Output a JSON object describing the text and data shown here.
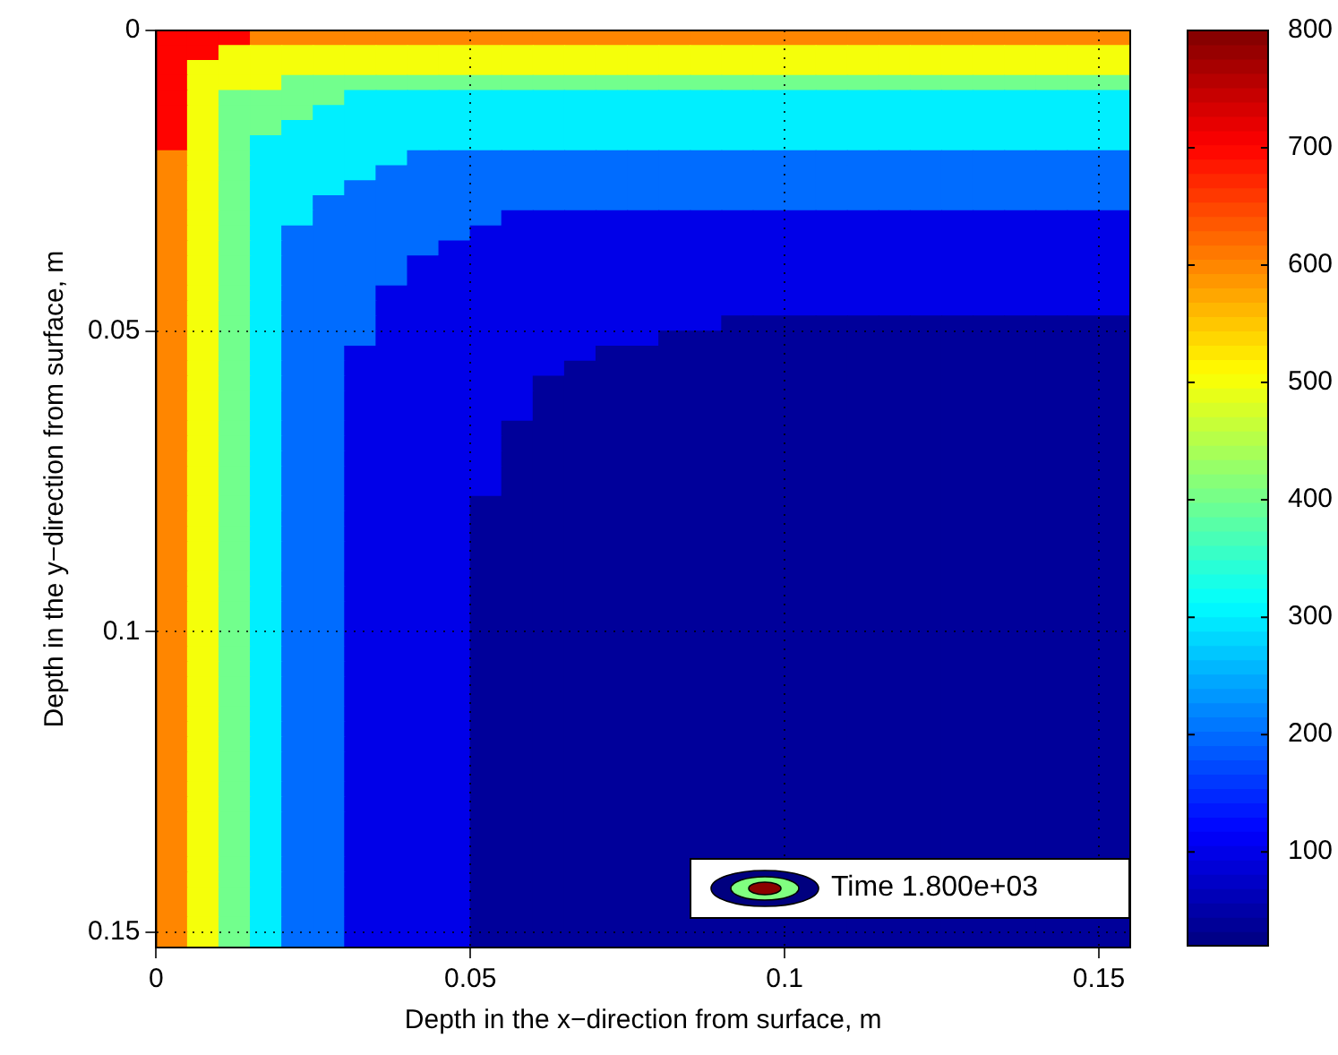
{
  "chart_data": {
    "type": "heatmap",
    "xlabel": "Depth in the x−direction from surface, m",
    "ylabel": "Depth in the y−direction from surface, m",
    "x": [
      0.0025,
      0.0075,
      0.0125,
      0.0175,
      0.0225,
      0.0275,
      0.0325,
      0.0375,
      0.0425,
      0.0475,
      0.0525,
      0.0575,
      0.0625,
      0.0675,
      0.0725,
      0.0775,
      0.0825,
      0.0875,
      0.0925,
      0.0975,
      0.1025,
      0.1075,
      0.1125,
      0.1175,
      0.1225,
      0.1275,
      0.1325,
      0.1375,
      0.1425,
      0.1475,
      0.1525
    ],
    "y": [
      0.00125,
      0.00375,
      0.00625,
      0.00875,
      0.01125,
      0.01375,
      0.01625,
      0.01875,
      0.02125,
      0.02375,
      0.02625,
      0.02875,
      0.03125,
      0.03375,
      0.03625,
      0.03875,
      0.04125,
      0.04375,
      0.04625,
      0.04875,
      0.05125,
      0.05375,
      0.05625,
      0.05875,
      0.06125,
      0.06375,
      0.06625,
      0.06875,
      0.07125,
      0.07375,
      0.07625,
      0.07875,
      0.08125,
      0.08375,
      0.08625,
      0.08875,
      0.09125,
      0.09375,
      0.09625,
      0.09875,
      0.10125,
      0.10375,
      0.10625,
      0.10875,
      0.11125,
      0.11375,
      0.11625,
      0.11875,
      0.12125,
      0.12375,
      0.12625,
      0.12875,
      0.13125,
      0.13375,
      0.13625,
      0.13875,
      0.14125,
      0.14375,
      0.14625,
      0.14875,
      0.15125
    ],
    "xlim": [
      0,
      0.155
    ],
    "xticks": [
      0,
      0.05,
      0.1,
      0.15
    ],
    "ylim": [
      0.1525,
      0
    ],
    "yticks": [
      0,
      0.05,
      0.1,
      0.15
    ],
    "clim": [
      20,
      800
    ],
    "cticks": [
      100,
      200,
      300,
      400,
      500,
      600,
      700,
      800
    ],
    "grid": true,
    "annotations": [
      "Time 1.800e+03"
    ],
    "cells": [
      [
        700,
        700,
        700,
        600,
        600,
        600,
        600,
        600,
        600,
        600,
        600,
        600,
        600,
        600,
        600,
        600,
        600,
        600,
        600,
        600,
        600,
        600,
        600,
        600,
        600,
        600,
        600,
        600,
        600,
        600,
        600
      ],
      [
        700,
        700,
        500,
        500,
        500,
        500,
        500,
        500,
        500,
        500,
        500,
        500,
        500,
        500,
        500,
        500,
        500,
        500,
        500,
        500,
        500,
        500,
        500,
        500,
        500,
        500,
        500,
        500,
        500,
        500,
        500
      ],
      [
        700,
        500,
        500,
        500,
        500,
        500,
        500,
        500,
        500,
        500,
        500,
        500,
        500,
        500,
        500,
        500,
        500,
        500,
        500,
        500,
        500,
        500,
        500,
        500,
        500,
        500,
        500,
        500,
        500,
        500,
        500
      ],
      [
        700,
        500,
        500,
        500,
        400,
        400,
        400,
        400,
        400,
        400,
        400,
        400,
        400,
        400,
        400,
        400,
        400,
        400,
        400,
        400,
        400,
        400,
        400,
        400,
        400,
        400,
        400,
        400,
        400,
        400,
        400
      ],
      [
        700,
        500,
        400,
        400,
        400,
        400,
        300,
        300,
        300,
        300,
        300,
        300,
        300,
        300,
        300,
        300,
        300,
        300,
        300,
        300,
        300,
        300,
        300,
        300,
        300,
        300,
        300,
        300,
        300,
        300,
        300
      ],
      [
        700,
        500,
        400,
        400,
        400,
        300,
        300,
        300,
        300,
        300,
        300,
        300,
        300,
        300,
        300,
        300,
        300,
        300,
        300,
        300,
        300,
        300,
        300,
        300,
        300,
        300,
        300,
        300,
        300,
        300,
        300
      ],
      [
        700,
        500,
        400,
        400,
        300,
        300,
        300,
        300,
        300,
        300,
        300,
        300,
        300,
        300,
        300,
        300,
        300,
        300,
        300,
        300,
        300,
        300,
        300,
        300,
        300,
        300,
        300,
        300,
        300,
        300,
        300
      ],
      [
        700,
        500,
        400,
        300,
        300,
        300,
        300,
        300,
        300,
        300,
        300,
        300,
        300,
        300,
        300,
        300,
        300,
        300,
        300,
        300,
        300,
        300,
        300,
        300,
        300,
        300,
        300,
        300,
        300,
        300,
        300
      ],
      [
        600,
        500,
        400,
        300,
        300,
        300,
        300,
        300,
        200,
        200,
        200,
        200,
        200,
        200,
        200,
        200,
        200,
        200,
        200,
        200,
        200,
        200,
        200,
        200,
        200,
        200,
        200,
        200,
        200,
        200,
        200
      ],
      [
        600,
        500,
        400,
        300,
        300,
        300,
        300,
        200,
        200,
        200,
        200,
        200,
        200,
        200,
        200,
        200,
        200,
        200,
        200,
        200,
        200,
        200,
        200,
        200,
        200,
        200,
        200,
        200,
        200,
        200,
        200
      ],
      [
        600,
        500,
        400,
        300,
        300,
        300,
        200,
        200,
        200,
        200,
        200,
        200,
        200,
        200,
        200,
        200,
        200,
        200,
        200,
        200,
        200,
        200,
        200,
        200,
        200,
        200,
        200,
        200,
        200,
        200,
        200
      ],
      [
        600,
        500,
        400,
        300,
        300,
        200,
        200,
        200,
        200,
        200,
        200,
        200,
        200,
        200,
        200,
        200,
        200,
        200,
        200,
        200,
        200,
        200,
        200,
        200,
        200,
        200,
        200,
        200,
        200,
        200,
        200
      ],
      [
        600,
        500,
        400,
        300,
        300,
        200,
        200,
        200,
        200,
        200,
        200,
        100,
        100,
        100,
        100,
        100,
        100,
        100,
        100,
        100,
        100,
        100,
        100,
        100,
        100,
        100,
        100,
        100,
        100,
        100,
        100
      ],
      [
        600,
        500,
        400,
        300,
        200,
        200,
        200,
        200,
        200,
        200,
        100,
        100,
        100,
        100,
        100,
        100,
        100,
        100,
        100,
        100,
        100,
        100,
        100,
        100,
        100,
        100,
        100,
        100,
        100,
        100,
        100
      ],
      [
        600,
        500,
        400,
        300,
        200,
        200,
        200,
        200,
        200,
        100,
        100,
        100,
        100,
        100,
        100,
        100,
        100,
        100,
        100,
        100,
        100,
        100,
        100,
        100,
        100,
        100,
        100,
        100,
        100,
        100,
        100
      ],
      [
        600,
        500,
        400,
        300,
        200,
        200,
        200,
        200,
        100,
        100,
        100,
        100,
        100,
        100,
        100,
        100,
        100,
        100,
        100,
        100,
        100,
        100,
        100,
        100,
        100,
        100,
        100,
        100,
        100,
        100,
        100
      ],
      [
        600,
        500,
        400,
        300,
        200,
        200,
        200,
        200,
        100,
        100,
        100,
        100,
        100,
        100,
        100,
        100,
        100,
        100,
        100,
        100,
        100,
        100,
        100,
        100,
        100,
        100,
        100,
        100,
        100,
        100,
        100
      ],
      [
        600,
        500,
        400,
        300,
        200,
        200,
        200,
        100,
        100,
        100,
        100,
        100,
        100,
        100,
        100,
        100,
        100,
        100,
        100,
        100,
        100,
        100,
        100,
        100,
        100,
        100,
        100,
        100,
        100,
        100,
        100
      ],
      [
        600,
        500,
        400,
        300,
        200,
        200,
        200,
        100,
        100,
        100,
        100,
        100,
        100,
        100,
        100,
        100,
        100,
        100,
        100,
        100,
        100,
        100,
        100,
        100,
        100,
        100,
        100,
        100,
        100,
        100,
        100
      ],
      [
        600,
        500,
        400,
        300,
        200,
        200,
        200,
        100,
        100,
        100,
        100,
        100,
        100,
        100,
        100,
        100,
        100,
        100,
        40,
        40,
        40,
        40,
        40,
        40,
        40,
        40,
        40,
        40,
        40,
        40,
        40
      ],
      [
        600,
        500,
        400,
        300,
        200,
        200,
        200,
        100,
        100,
        100,
        100,
        100,
        100,
        100,
        100,
        100,
        40,
        40,
        40,
        40,
        40,
        40,
        40,
        40,
        40,
        40,
        40,
        40,
        40,
        40,
        40
      ],
      [
        600,
        500,
        400,
        300,
        200,
        200,
        100,
        100,
        100,
        100,
        100,
        100,
        100,
        100,
        40,
        40,
        40,
        40,
        40,
        40,
        40,
        40,
        40,
        40,
        40,
        40,
        40,
        40,
        40,
        40,
        40
      ],
      [
        600,
        500,
        400,
        300,
        200,
        200,
        100,
        100,
        100,
        100,
        100,
        100,
        100,
        40,
        40,
        40,
        40,
        40,
        40,
        40,
        40,
        40,
        40,
        40,
        40,
        40,
        40,
        40,
        40,
        40,
        40
      ],
      [
        600,
        500,
        400,
        300,
        200,
        200,
        100,
        100,
        100,
        100,
        100,
        100,
        40,
        40,
        40,
        40,
        40,
        40,
        40,
        40,
        40,
        40,
        40,
        40,
        40,
        40,
        40,
        40,
        40,
        40,
        40
      ],
      [
        600,
        500,
        400,
        300,
        200,
        200,
        100,
        100,
        100,
        100,
        100,
        100,
        40,
        40,
        40,
        40,
        40,
        40,
        40,
        40,
        40,
        40,
        40,
        40,
        40,
        40,
        40,
        40,
        40,
        40,
        40
      ],
      [
        600,
        500,
        400,
        300,
        200,
        200,
        100,
        100,
        100,
        100,
        100,
        100,
        40,
        40,
        40,
        40,
        40,
        40,
        40,
        40,
        40,
        40,
        40,
        40,
        40,
        40,
        40,
        40,
        40,
        40,
        40
      ],
      [
        600,
        500,
        400,
        300,
        200,
        200,
        100,
        100,
        100,
        100,
        100,
        40,
        40,
        40,
        40,
        40,
        40,
        40,
        40,
        40,
        40,
        40,
        40,
        40,
        40,
        40,
        40,
        40,
        40,
        40,
        40
      ],
      [
        600,
        500,
        400,
        300,
        200,
        200,
        100,
        100,
        100,
        100,
        100,
        40,
        40,
        40,
        40,
        40,
        40,
        40,
        40,
        40,
        40,
        40,
        40,
        40,
        40,
        40,
        40,
        40,
        40,
        40,
        40
      ],
      [
        600,
        500,
        400,
        300,
        200,
        200,
        100,
        100,
        100,
        100,
        100,
        40,
        40,
        40,
        40,
        40,
        40,
        40,
        40,
        40,
        40,
        40,
        40,
        40,
        40,
        40,
        40,
        40,
        40,
        40,
        40
      ],
      [
        600,
        500,
        400,
        300,
        200,
        200,
        100,
        100,
        100,
        100,
        100,
        40,
        40,
        40,
        40,
        40,
        40,
        40,
        40,
        40,
        40,
        40,
        40,
        40,
        40,
        40,
        40,
        40,
        40,
        40,
        40
      ],
      [
        600,
        500,
        400,
        300,
        200,
        200,
        100,
        100,
        100,
        100,
        100,
        40,
        40,
        40,
        40,
        40,
        40,
        40,
        40,
        40,
        40,
        40,
        40,
        40,
        40,
        40,
        40,
        40,
        40,
        40,
        40
      ],
      [
        600,
        500,
        400,
        300,
        200,
        200,
        100,
        100,
        100,
        100,
        40,
        40,
        40,
        40,
        40,
        40,
        40,
        40,
        40,
        40,
        40,
        40,
        40,
        40,
        40,
        40,
        40,
        40,
        40,
        40,
        40
      ],
      [
        600,
        500,
        400,
        300,
        200,
        200,
        100,
        100,
        100,
        100,
        40,
        40,
        40,
        40,
        40,
        40,
        40,
        40,
        40,
        40,
        40,
        40,
        40,
        40,
        40,
        40,
        40,
        40,
        40,
        40,
        40
      ],
      [
        600,
        500,
        400,
        300,
        200,
        200,
        100,
        100,
        100,
        100,
        40,
        40,
        40,
        40,
        40,
        40,
        40,
        40,
        40,
        40,
        40,
        40,
        40,
        40,
        40,
        40,
        40,
        40,
        40,
        40,
        40
      ],
      [
        600,
        500,
        400,
        300,
        200,
        200,
        100,
        100,
        100,
        100,
        40,
        40,
        40,
        40,
        40,
        40,
        40,
        40,
        40,
        40,
        40,
        40,
        40,
        40,
        40,
        40,
        40,
        40,
        40,
        40,
        40
      ],
      [
        600,
        500,
        400,
        300,
        200,
        200,
        100,
        100,
        100,
        100,
        40,
        40,
        40,
        40,
        40,
        40,
        40,
        40,
        40,
        40,
        40,
        40,
        40,
        40,
        40,
        40,
        40,
        40,
        40,
        40,
        40
      ],
      [
        600,
        500,
        400,
        300,
        200,
        200,
        100,
        100,
        100,
        100,
        40,
        40,
        40,
        40,
        40,
        40,
        40,
        40,
        40,
        40,
        40,
        40,
        40,
        40,
        40,
        40,
        40,
        40,
        40,
        40,
        40
      ],
      [
        600,
        500,
        400,
        300,
        200,
        200,
        100,
        100,
        100,
        100,
        40,
        40,
        40,
        40,
        40,
        40,
        40,
        40,
        40,
        40,
        40,
        40,
        40,
        40,
        40,
        40,
        40,
        40,
        40,
        40,
        40
      ],
      [
        600,
        500,
        400,
        300,
        200,
        200,
        100,
        100,
        100,
        100,
        40,
        40,
        40,
        40,
        40,
        40,
        40,
        40,
        40,
        40,
        40,
        40,
        40,
        40,
        40,
        40,
        40,
        40,
        40,
        40,
        40
      ],
      [
        600,
        500,
        400,
        300,
        200,
        200,
        100,
        100,
        100,
        100,
        40,
        40,
        40,
        40,
        40,
        40,
        40,
        40,
        40,
        40,
        40,
        40,
        40,
        40,
        40,
        40,
        40,
        40,
        40,
        40,
        40
      ],
      [
        600,
        500,
        400,
        300,
        200,
        200,
        100,
        100,
        100,
        100,
        40,
        40,
        40,
        40,
        40,
        40,
        40,
        40,
        40,
        40,
        40,
        40,
        40,
        40,
        40,
        40,
        40,
        40,
        40,
        40,
        40
      ],
      [
        600,
        500,
        400,
        300,
        200,
        200,
        100,
        100,
        100,
        100,
        40,
        40,
        40,
        40,
        40,
        40,
        40,
        40,
        40,
        40,
        40,
        40,
        40,
        40,
        40,
        40,
        40,
        40,
        40,
        40,
        40
      ],
      [
        600,
        500,
        400,
        300,
        200,
        200,
        100,
        100,
        100,
        100,
        40,
        40,
        40,
        40,
        40,
        40,
        40,
        40,
        40,
        40,
        40,
        40,
        40,
        40,
        40,
        40,
        40,
        40,
        40,
        40,
        40
      ],
      [
        600,
        500,
        400,
        300,
        200,
        200,
        100,
        100,
        100,
        100,
        40,
        40,
        40,
        40,
        40,
        40,
        40,
        40,
        40,
        40,
        40,
        40,
        40,
        40,
        40,
        40,
        40,
        40,
        40,
        40,
        40
      ],
      [
        600,
        500,
        400,
        300,
        200,
        200,
        100,
        100,
        100,
        100,
        40,
        40,
        40,
        40,
        40,
        40,
        40,
        40,
        40,
        40,
        40,
        40,
        40,
        40,
        40,
        40,
        40,
        40,
        40,
        40,
        40
      ],
      [
        600,
        500,
        400,
        300,
        200,
        200,
        100,
        100,
        100,
        100,
        40,
        40,
        40,
        40,
        40,
        40,
        40,
        40,
        40,
        40,
        40,
        40,
        40,
        40,
        40,
        40,
        40,
        40,
        40,
        40,
        40
      ],
      [
        600,
        500,
        400,
        300,
        200,
        200,
        100,
        100,
        100,
        100,
        40,
        40,
        40,
        40,
        40,
        40,
        40,
        40,
        40,
        40,
        40,
        40,
        40,
        40,
        40,
        40,
        40,
        40,
        40,
        40,
        40
      ],
      [
        600,
        500,
        400,
        300,
        200,
        200,
        100,
        100,
        100,
        100,
        40,
        40,
        40,
        40,
        40,
        40,
        40,
        40,
        40,
        40,
        40,
        40,
        40,
        40,
        40,
        40,
        40,
        40,
        40,
        40,
        40
      ],
      [
        600,
        500,
        400,
        300,
        200,
        200,
        100,
        100,
        100,
        100,
        40,
        40,
        40,
        40,
        40,
        40,
        40,
        40,
        40,
        40,
        40,
        40,
        40,
        40,
        40,
        40,
        40,
        40,
        40,
        40,
        40
      ],
      [
        600,
        500,
        400,
        300,
        200,
        200,
        100,
        100,
        100,
        100,
        40,
        40,
        40,
        40,
        40,
        40,
        40,
        40,
        40,
        40,
        40,
        40,
        40,
        40,
        40,
        40,
        40,
        40,
        40,
        40,
        40
      ],
      [
        600,
        500,
        400,
        300,
        200,
        200,
        100,
        100,
        100,
        100,
        40,
        40,
        40,
        40,
        40,
        40,
        40,
        40,
        40,
        40,
        40,
        40,
        40,
        40,
        40,
        40,
        40,
        40,
        40,
        40,
        40
      ],
      [
        600,
        500,
        400,
        300,
        200,
        200,
        100,
        100,
        100,
        100,
        40,
        40,
        40,
        40,
        40,
        40,
        40,
        40,
        40,
        40,
        40,
        40,
        40,
        40,
        40,
        40,
        40,
        40,
        40,
        40,
        40
      ],
      [
        600,
        500,
        400,
        300,
        200,
        200,
        100,
        100,
        100,
        100,
        40,
        40,
        40,
        40,
        40,
        40,
        40,
        40,
        40,
        40,
        40,
        40,
        40,
        40,
        40,
        40,
        40,
        40,
        40,
        40,
        40
      ],
      [
        600,
        500,
        400,
        300,
        200,
        200,
        100,
        100,
        100,
        100,
        40,
        40,
        40,
        40,
        40,
        40,
        40,
        40,
        40,
        40,
        40,
        40,
        40,
        40,
        40,
        40,
        40,
        40,
        40,
        40,
        40
      ],
      [
        600,
        500,
        400,
        300,
        200,
        200,
        100,
        100,
        100,
        100,
        40,
        40,
        40,
        40,
        40,
        40,
        40,
        40,
        40,
        40,
        40,
        40,
        40,
        40,
        40,
        40,
        40,
        40,
        40,
        40,
        40
      ],
      [
        600,
        500,
        400,
        300,
        200,
        200,
        100,
        100,
        100,
        100,
        40,
        40,
        40,
        40,
        40,
        40,
        40,
        null,
        null,
        null,
        null,
        null,
        null,
        null,
        null,
        null,
        null,
        null,
        null,
        null,
        null
      ],
      [
        600,
        500,
        400,
        300,
        200,
        200,
        100,
        100,
        100,
        100,
        40,
        40,
        40,
        40,
        40,
        40,
        40,
        null,
        null,
        null,
        null,
        null,
        null,
        null,
        null,
        null,
        null,
        null,
        null,
        null,
        null
      ],
      [
        600,
        500,
        400,
        300,
        200,
        200,
        100,
        100,
        100,
        100,
        40,
        40,
        40,
        40,
        40,
        40,
        40,
        null,
        null,
        null,
        null,
        null,
        null,
        null,
        null,
        null,
        null,
        null,
        null,
        null,
        null
      ],
      [
        600,
        500,
        400,
        300,
        200,
        200,
        100,
        100,
        100,
        100,
        40,
        40,
        40,
        40,
        40,
        40,
        40,
        null,
        null,
        null,
        null,
        null,
        null,
        null,
        null,
        null,
        null,
        null,
        null,
        null,
        null
      ],
      [
        600,
        500,
        400,
        300,
        200,
        200,
        100,
        100,
        100,
        100,
        40,
        40,
        40,
        40,
        40,
        40,
        40,
        40,
        40,
        40,
        40,
        40,
        40,
        40,
        40,
        40,
        40,
        40,
        40,
        40,
        40
      ],
      [
        600,
        500,
        400,
        300,
        200,
        200,
        100,
        100,
        100,
        100,
        40,
        40,
        40,
        40,
        40,
        40,
        40,
        40,
        40,
        40,
        40,
        40,
        40,
        40,
        40,
        40,
        40,
        40,
        40,
        40,
        40
      ]
    ]
  }
}
